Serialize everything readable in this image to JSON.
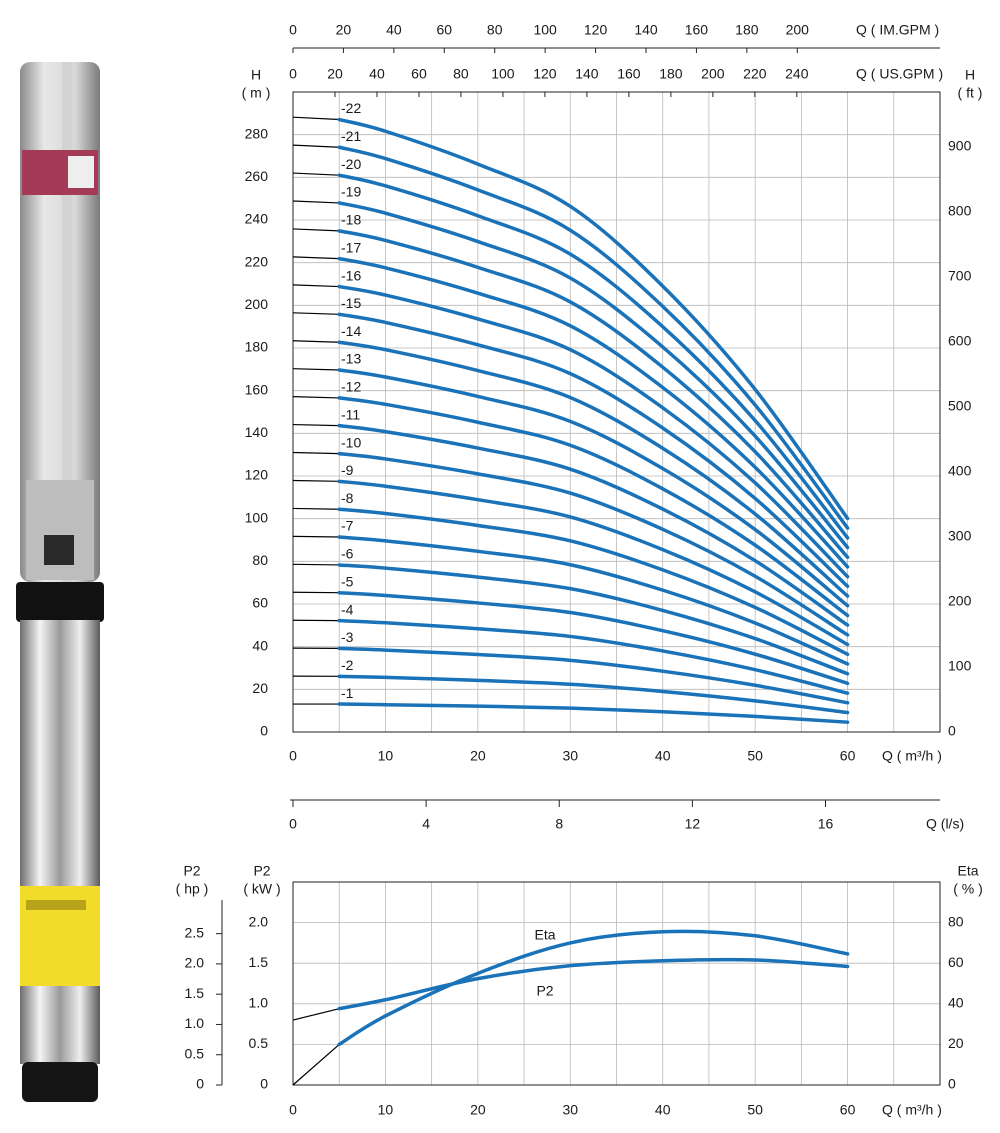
{
  "chart_data": [
    {
      "type": "line",
      "x": [
        0,
        5,
        10,
        20,
        30,
        40,
        50,
        60
      ],
      "xlim": [
        0,
        70
      ],
      "xticks": [
        0,
        10,
        20,
        30,
        40,
        50,
        60
      ],
      "x_gridlines": [
        5,
        15,
        25,
        35,
        45,
        55,
        65
      ],
      "x_label": "Q ( m³/h )",
      "ylim": [
        0,
        300
      ],
      "yticks": [
        0,
        20,
        40,
        60,
        80,
        100,
        120,
        140,
        160,
        180,
        200,
        220,
        240,
        260,
        280
      ],
      "y_label": [
        "H",
        "( m )"
      ],
      "y2lim": [
        0,
        984.25
      ],
      "y2ticks": [
        0,
        100,
        200,
        300,
        400,
        500,
        600,
        700,
        800,
        900
      ],
      "y2_label": [
        "H",
        "( ft )"
      ],
      "top_axes": [
        {
          "label": "Q ( US.GPM )",
          "lim": [
            0,
            308.2
          ],
          "ticks": [
            0,
            20,
            40,
            60,
            80,
            100,
            120,
            140,
            160,
            180,
            200,
            220,
            240
          ]
        },
        {
          "label": "Q ( IM.GPM )",
          "lim": [
            0,
            256.6
          ],
          "ticks": [
            0,
            20,
            40,
            60,
            80,
            100,
            120,
            140,
            160,
            180,
            200
          ]
        }
      ],
      "bottom_axis": {
        "label": "Q (l/s)",
        "lim": [
          0,
          19.44
        ],
        "ticks": [
          0,
          4,
          8,
          12,
          16
        ]
      },
      "grid": true,
      "extension_color": "#000000",
      "series": [
        {
          "name": "-1",
          "color": "#1a72b8",
          "values": [
            13.1,
            13.1,
            12.8,
            12.1,
            11.2,
            9.5,
            7.3,
            4.6
          ]
        },
        {
          "name": "-2",
          "color": "#1a72b8",
          "values": [
            26.2,
            26.1,
            25.6,
            24.2,
            22.4,
            19,
            14.6,
            9.1
          ]
        },
        {
          "name": "-3",
          "color": "#1a72b8",
          "values": [
            39.3,
            39.2,
            38.4,
            36.3,
            33.6,
            28.5,
            21.9,
            13.7
          ]
        },
        {
          "name": "-4",
          "color": "#1a72b8",
          "values": [
            52.4,
            52.2,
            51.2,
            48.4,
            44.8,
            38,
            29.2,
            18.2
          ]
        },
        {
          "name": "-5",
          "color": "#1a72b8",
          "values": [
            65.5,
            65.3,
            64,
            60.5,
            56,
            47.5,
            36.5,
            22.8
          ]
        },
        {
          "name": "-6",
          "color": "#1a72b8",
          "values": [
            78.6,
            78.3,
            76.8,
            72.6,
            67.2,
            57,
            43.8,
            27.3
          ]
        },
        {
          "name": "-7",
          "color": "#1a72b8",
          "values": [
            91.7,
            91.4,
            89.6,
            84.7,
            78.4,
            66.5,
            51.1,
            31.9
          ]
        },
        {
          "name": "-8",
          "color": "#1a72b8",
          "values": [
            104.8,
            104.4,
            102.4,
            96.8,
            89.6,
            76,
            58.4,
            36.4
          ]
        },
        {
          "name": "-9",
          "color": "#1a72b8",
          "values": [
            117.9,
            117.5,
            115.2,
            108.9,
            100.8,
            85.5,
            65.7,
            41
          ]
        },
        {
          "name": "-10",
          "color": "#1a72b8",
          "values": [
            131,
            130.5,
            128,
            121,
            112,
            95,
            73,
            45.5
          ]
        },
        {
          "name": "-11",
          "color": "#1a72b8",
          "values": [
            144.1,
            143.6,
            140.8,
            133.1,
            123.2,
            104.5,
            80.3,
            50.1
          ]
        },
        {
          "name": "-12",
          "color": "#1a72b8",
          "values": [
            157.2,
            156.6,
            153.6,
            145.2,
            134.4,
            114,
            87.6,
            54.6
          ]
        },
        {
          "name": "-13",
          "color": "#1a72b8",
          "values": [
            170.3,
            169.7,
            166.4,
            157.3,
            145.6,
            123.5,
            94.9,
            59.2
          ]
        },
        {
          "name": "-14",
          "color": "#1a72b8",
          "values": [
            183.4,
            182.7,
            179.2,
            169.4,
            156.8,
            133,
            102.2,
            63.7
          ]
        },
        {
          "name": "-15",
          "color": "#1a72b8",
          "values": [
            196.5,
            195.8,
            192,
            181.5,
            168,
            142.5,
            109.5,
            68.3
          ]
        },
        {
          "name": "-16",
          "color": "#1a72b8",
          "values": [
            209.6,
            208.8,
            204.8,
            193.6,
            179.2,
            152,
            116.8,
            72.8
          ]
        },
        {
          "name": "-17",
          "color": "#1a72b8",
          "values": [
            222.7,
            221.9,
            217.6,
            205.7,
            190.4,
            161.5,
            124.1,
            77.4
          ]
        },
        {
          "name": "-18",
          "color": "#1a72b8",
          "values": [
            235.8,
            234.9,
            230.4,
            217.8,
            201.6,
            171,
            131.4,
            81.9
          ]
        },
        {
          "name": "-19",
          "color": "#1a72b8",
          "values": [
            248.9,
            248,
            243.2,
            229.9,
            212.8,
            180.5,
            138.7,
            86.5
          ]
        },
        {
          "name": "-20",
          "color": "#1a72b8",
          "values": [
            262,
            261,
            256,
            242,
            224,
            190,
            146,
            91
          ]
        },
        {
          "name": "-21",
          "color": "#1a72b8",
          "values": [
            275.1,
            274.1,
            268.8,
            254.1,
            235.2,
            199.5,
            153.3,
            95.6
          ]
        },
        {
          "name": "-22",
          "color": "#1a72b8",
          "values": [
            288.2,
            287.1,
            281.6,
            266.2,
            246.4,
            209,
            160.6,
            100.1
          ]
        }
      ]
    },
    {
      "type": "line",
      "x": [
        0,
        5,
        10,
        20,
        30,
        40,
        50,
        60
      ],
      "xlim": [
        0,
        70
      ],
      "xticks": [
        0,
        10,
        20,
        30,
        40,
        50,
        60
      ],
      "x_gridlines": [
        5,
        15,
        25,
        35,
        45,
        55,
        65
      ],
      "x_label": "Q ( m³/h )",
      "ylim": [
        0,
        2.5
      ],
      "yticks": [
        0,
        0.5,
        {
          "value": 1,
          "label": "1.0"
        },
        1.5,
        {
          "value": 2,
          "label": "2.0"
        }
      ],
      "y_label": [
        "P2",
        "( kW )"
      ],
      "hp_axis": {
        "label": [
          "P2",
          "( hp )"
        ],
        "lim": [
          0,
          3.353
        ],
        "ticks": [
          0,
          0.5,
          {
            "value": 1,
            "label": "1.0"
          },
          1.5,
          {
            "value": 2,
            "label": "2.0"
          },
          2.5
        ]
      },
      "y2lim": [
        0,
        100
      ],
      "y2ticks": [
        0,
        20,
        40,
        60,
        80
      ],
      "y2_label": [
        "Eta",
        "( % )"
      ],
      "grid": true,
      "extension_color": "#000000",
      "series": [
        {
          "name": "P2",
          "color": "#1a72b8",
          "values": [
            0.8,
            0.94,
            1.05,
            1.31,
            1.47,
            1.53,
            1.54,
            1.46
          ]
        },
        {
          "name": "Eta",
          "color": "#1a72b8",
          "axis": "y2",
          "values": [
            0,
            20,
            34,
            55,
            70,
            75.5,
            73.5,
            64.6
          ]
        }
      ]
    }
  ]
}
